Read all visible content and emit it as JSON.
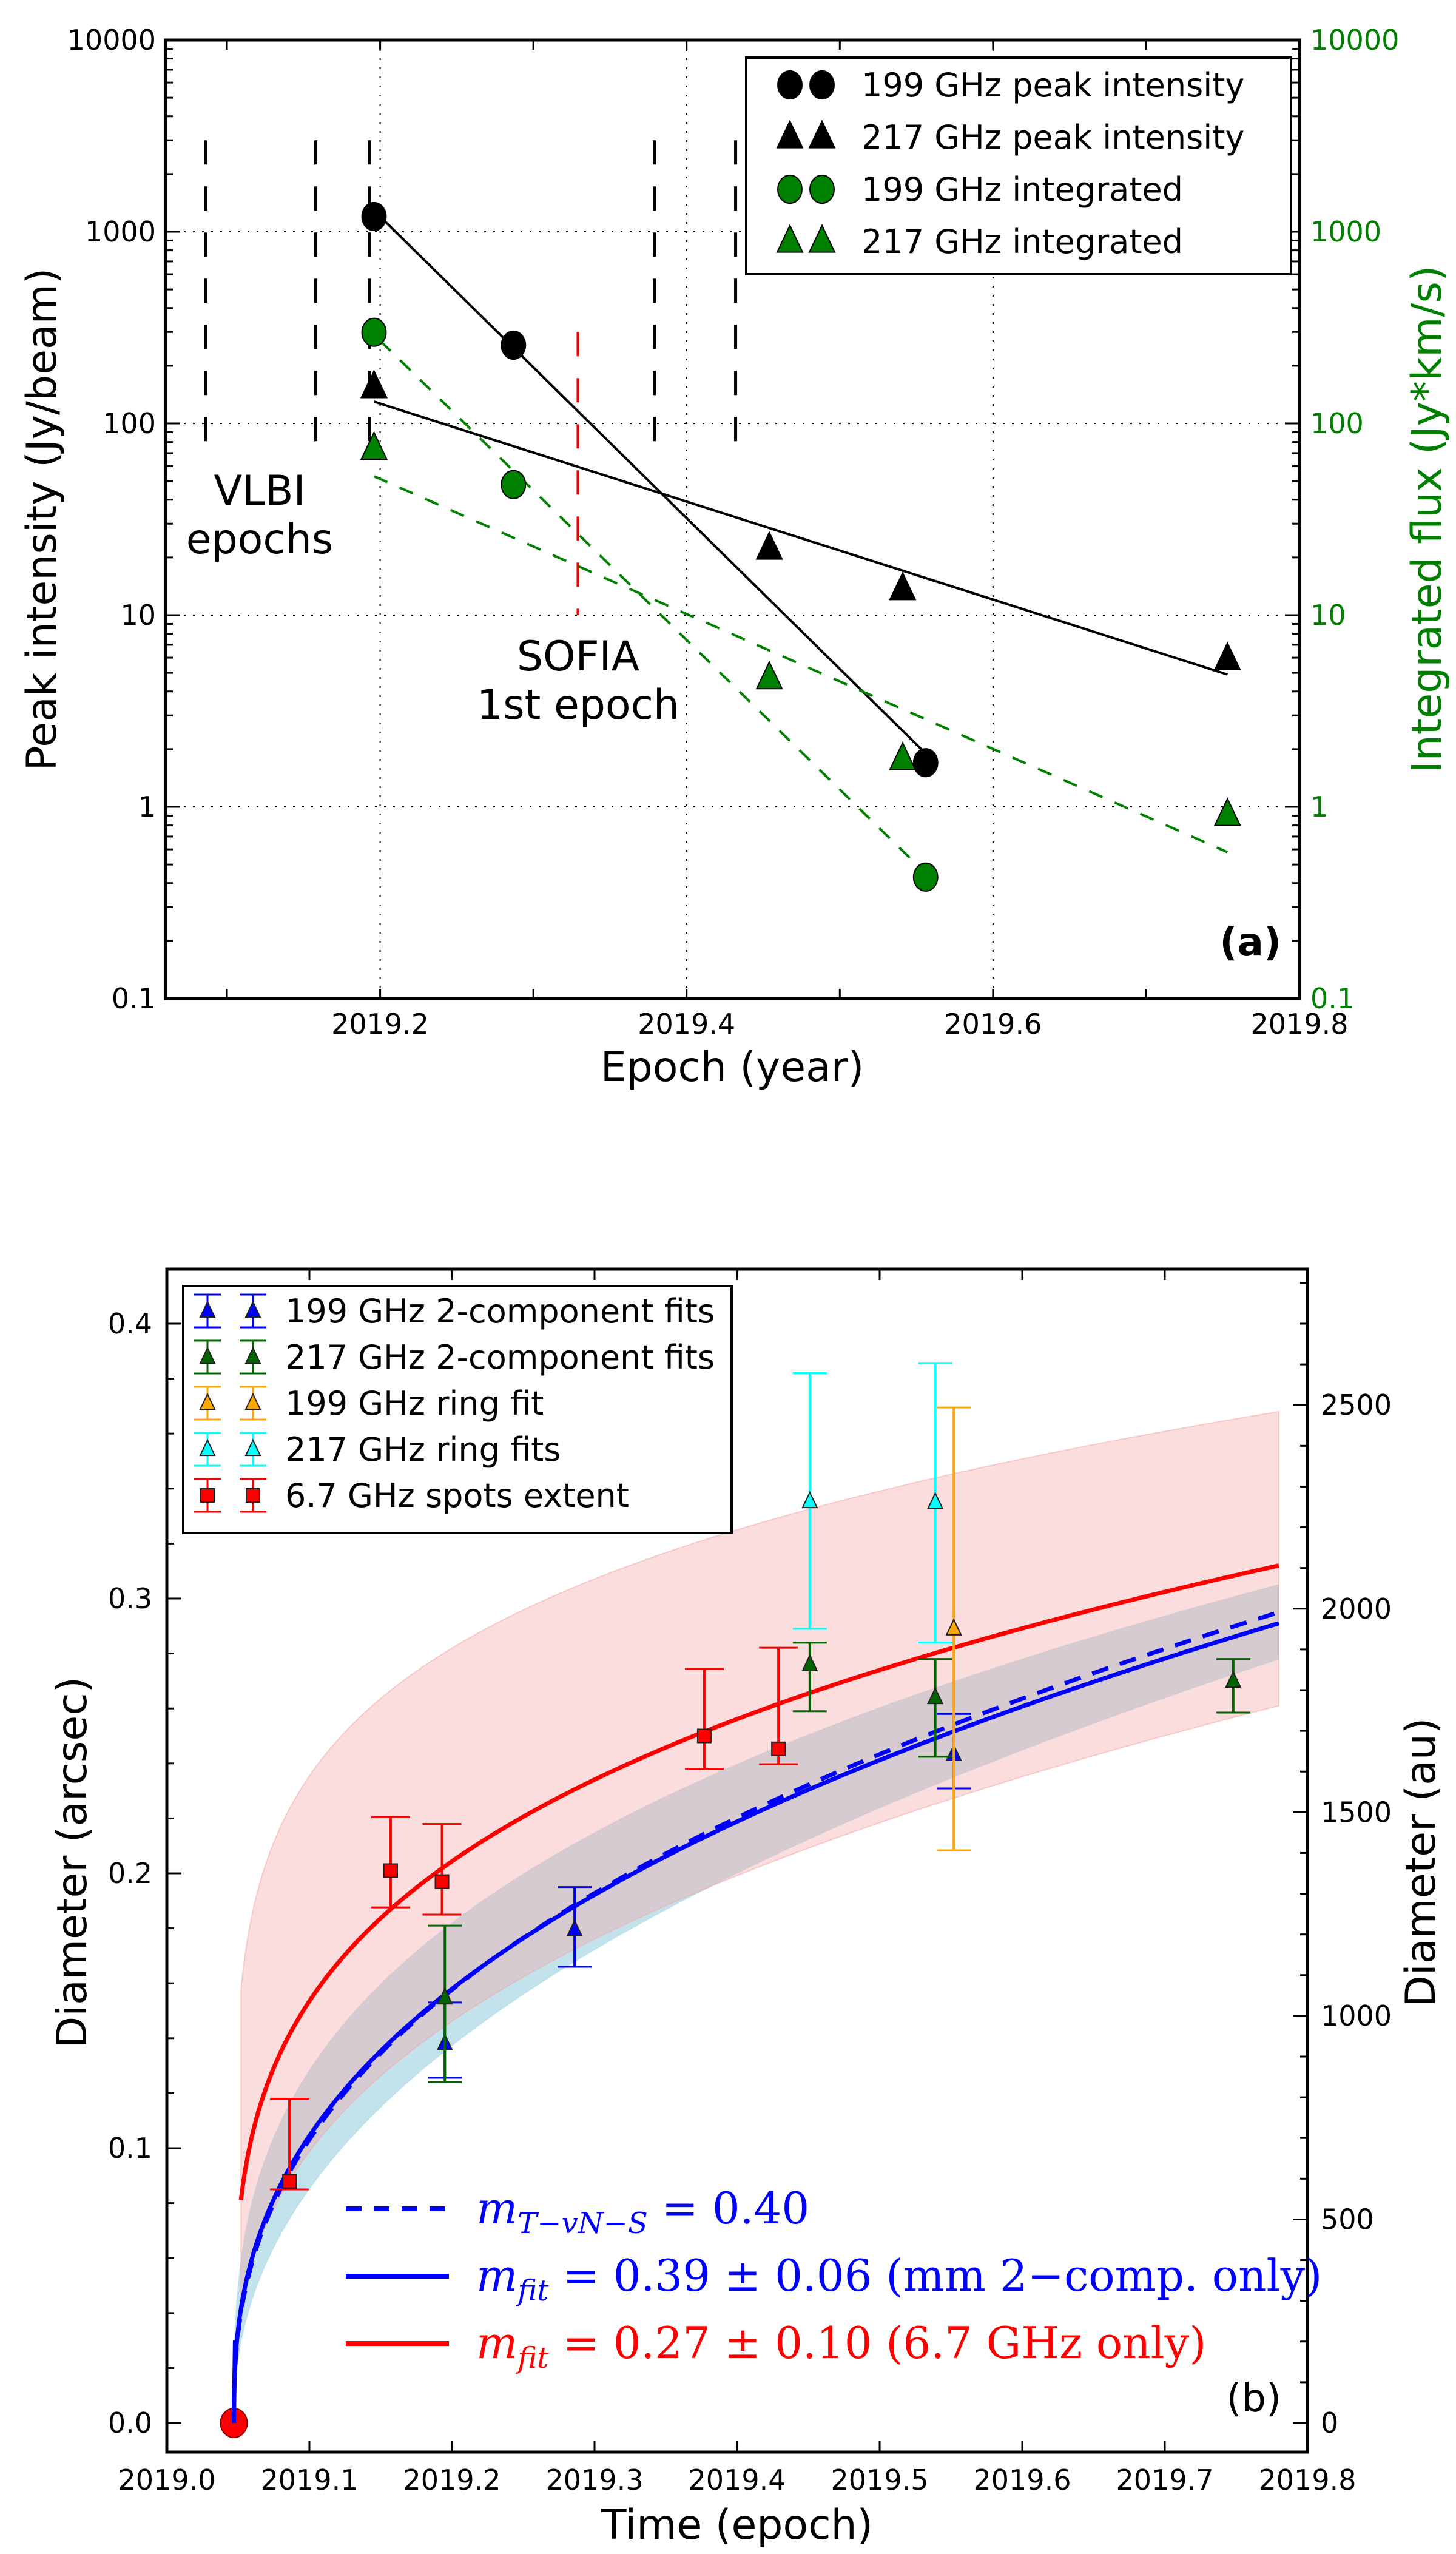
{
  "chart_data": [
    {
      "id": "panel_a",
      "type": "scatter",
      "panel_label": "(a)",
      "xlabel": "Epoch (year)",
      "ylabel": "Peak intensity (Jy/beam)",
      "ylabel_right": "Integrated flux (Jy*km/s)",
      "xscale": "linear",
      "yscale": "log",
      "xlim": [
        2019.06,
        2019.8
      ],
      "ylim": [
        0.1,
        10000
      ],
      "ylim_right": [
        0.1,
        10000
      ],
      "xticks": [
        2019.2,
        2019.4,
        2019.6,
        2019.8
      ],
      "xtick_labels": [
        "2019.2",
        "2019.4",
        "2019.6",
        "2019.8"
      ],
      "yticks": [
        0.1,
        1,
        10,
        100,
        1000,
        10000
      ],
      "ytick_labels": [
        "0.1",
        "1",
        "10",
        "100",
        "1000",
        "10000"
      ],
      "ytick_labels_right": [
        "0.1",
        "1",
        "10",
        "100",
        "1000",
        "10000"
      ],
      "grid": true,
      "legend_position": "top-right",
      "colors": {
        "black": "#000000",
        "green": "#008000",
        "right_axis": "#008000",
        "sofia": "#ff0000"
      },
      "series": [
        {
          "name": "199 GHz peak intensity",
          "marker": "circle",
          "color": "#000000",
          "x": [
            2019.196,
            2019.287,
            2019.556
          ],
          "y": [
            1200,
            256,
            1.7
          ]
        },
        {
          "name": "217 GHz peak intensity",
          "marker": "triangle",
          "color": "#000000",
          "x": [
            2019.196,
            2019.454,
            2019.541,
            2019.753
          ],
          "y": [
            155,
            22.3,
            13.7,
            5.9
          ]
        },
        {
          "name": "199 GHz integrated",
          "marker": "circle",
          "color": "#008000",
          "x": [
            2019.196,
            2019.287,
            2019.556
          ],
          "y": [
            299,
            48,
            0.43
          ]
        },
        {
          "name": "217 GHz integrated",
          "marker": "triangle",
          "color": "#008000",
          "x": [
            2019.196,
            2019.454,
            2019.541,
            2019.753
          ],
          "y": [
            74,
            4.7,
            1.78,
            0.91
          ]
        }
      ],
      "fit_lines": [
        {
          "name": "199 GHz peak fit",
          "style": "solid",
          "color": "#000000",
          "x": [
            2019.2,
            2019.556
          ],
          "y": [
            1200,
            1.9
          ]
        },
        {
          "name": "217 GHz peak fit",
          "style": "solid",
          "color": "#000000",
          "x": [
            2019.196,
            2019.753
          ],
          "y": [
            130,
            4.9
          ]
        },
        {
          "name": "199 GHz integrated fit",
          "style": "dashed",
          "color": "#008000",
          "x": [
            2019.2,
            2019.556
          ],
          "y": [
            270,
            0.45
          ]
        },
        {
          "name": "217 GHz integrated fit",
          "style": "dashed",
          "color": "#008000",
          "x": [
            2019.196,
            2019.753
          ],
          "y": [
            53,
            0.58
          ]
        }
      ],
      "vlbi_epochs": {
        "label_line1": "VLBI",
        "label_line2": "epochs",
        "x": [
          2019.086,
          2019.158,
          2019.193,
          2019.379,
          2019.432
        ],
        "y_range": [
          70,
          3000
        ],
        "color": "#000000"
      },
      "sofia_epoch": {
        "label_line1": "SOFIA",
        "label_line2": "1st epoch",
        "x": 2019.329,
        "y_range": [
          10,
          300
        ],
        "color": "#ff0000"
      }
    },
    {
      "id": "panel_b",
      "type": "scatter",
      "panel_label": "(b)",
      "xlabel": "Time (epoch)",
      "ylabel": "Diameter (arcsec)",
      "ylabel_right": "Diameter (au)",
      "xlim": [
        2019.0,
        2019.8
      ],
      "ylim": [
        -0.01,
        0.42
      ],
      "au_per_arcsec": 6750,
      "xticks": [
        2019.0,
        2019.1,
        2019.2,
        2019.3,
        2019.4,
        2019.5,
        2019.6,
        2019.7,
        2019.8
      ],
      "xtick_labels": [
        "2019.0",
        "2019.1",
        "2019.2",
        "2019.3",
        "2019.4",
        "2019.5",
        "2019.6",
        "2019.7",
        "2019.8"
      ],
      "yticks": [
        0.0,
        0.1,
        0.2,
        0.3,
        0.4
      ],
      "ytick_labels": [
        "0.0",
        "0.1",
        "0.2",
        "0.3",
        "0.4"
      ],
      "yticks_right": [
        0,
        500,
        1000,
        1500,
        2000,
        2500
      ],
      "ytick_labels_right": [
        "0",
        "500",
        "1000",
        "1500",
        "2000",
        "2500"
      ],
      "grid": false,
      "legend_position": "top-left",
      "origin_point": {
        "x": 2019.047,
        "y": 0.0,
        "color": "#ff0000"
      },
      "series": [
        {
          "name": "199 GHz 2-component fits",
          "marker": "triangle",
          "color": "#0000ff",
          "points": [
            {
              "x": 2019.195,
              "y": 0.138,
              "lo": 0.1256,
              "hi": 0.153
            },
            {
              "x": 2019.286,
              "y": 0.1795,
              "lo": 0.166,
              "hi": 0.195
            },
            {
              "x": 2019.552,
              "y": 0.2433,
              "lo": 0.2309,
              "hi": 0.258
            }
          ]
        },
        {
          "name": "217 GHz 2-component fits",
          "marker": "triangle",
          "color": "#006400",
          "points": [
            {
              "x": 2019.195,
              "y": 0.1547,
              "lo": 0.124,
              "hi": 0.181
            },
            {
              "x": 2019.451,
              "y": 0.276,
              "lo": 0.259,
              "hi": 0.2839
            },
            {
              "x": 2019.539,
              "y": 0.264,
              "lo": 0.2424,
              "hi": 0.278
            },
            {
              "x": 2019.748,
              "y": 0.27,
              "lo": 0.2585,
              "hi": 0.278
            }
          ]
        },
        {
          "name": "199 GHz ring fit",
          "marker": "triangle",
          "color": "#ffa500",
          "points": [
            {
              "x": 2019.552,
              "y": 0.289,
              "lo": 0.2084,
              "hi": 0.3695
            }
          ]
        },
        {
          "name": "217 GHz ring fits",
          "marker": "triangle",
          "color": "#00ffff",
          "points": [
            {
              "x": 2019.451,
              "y": 0.3353,
              "lo": 0.289,
              "hi": 0.382
            },
            {
              "x": 2019.539,
              "y": 0.335,
              "lo": 0.284,
              "hi": 0.3857
            }
          ]
        },
        {
          "name": "6.7 GHz spots extent",
          "marker": "square",
          "color": "#ff0000",
          "points": [
            {
              "x": 2019.086,
              "y": 0.0879,
              "lo": 0.085,
              "hi": 0.118
            },
            {
              "x": 2019.157,
              "y": 0.201,
              "lo": 0.1876,
              "hi": 0.2205
            },
            {
              "x": 2019.193,
              "y": 0.197,
              "lo": 0.185,
              "hi": 0.218
            },
            {
              "x": 2019.377,
              "y": 0.25,
              "lo": 0.238,
              "hi": 0.2744
            },
            {
              "x": 2019.429,
              "y": 0.2453,
              "lo": 0.2397,
              "hi": 0.2821
            }
          ]
        }
      ],
      "model_curves": [
        {
          "name": "m_T-vN-S = 0.40",
          "style": "dashed",
          "color": "#0000ff",
          "t0": 2019.047,
          "t_end": 2019.78,
          "m": 0.4,
          "end_value": 0.295
        },
        {
          "name": "m_fit = 0.39 ± 0.06 (mm 2-comp. only)",
          "style": "solid",
          "color": "#0000ff",
          "t0": 2019.047,
          "t_end": 2019.78,
          "m": 0.39,
          "end_value": 0.291,
          "band": {
            "color": "#add8e6",
            "m_range": [
              0.33,
              0.45
            ],
            "end_range": [
              0.278,
              0.305
            ]
          }
        },
        {
          "name": "m_fit = 0.27 ± 0.10 (6.7 GHz only)",
          "style": "solid",
          "color": "#ff0000",
          "t0": 2019.047,
          "t_start": 2019.052,
          "t_end": 2019.78,
          "m": 0.27,
          "end_value": 0.312,
          "band": {
            "color": "#f4a6a6",
            "m_range": [
              0.17,
              0.37
            ],
            "end_range": [
              0.261,
              0.368
            ]
          }
        }
      ],
      "fit_legend": [
        {
          "style": "dashed",
          "color": "#0000ff",
          "symbol": "m",
          "subscript": "T−vN−S",
          "text": " = 0.40"
        },
        {
          "style": "solid",
          "color": "#0000ff",
          "symbol": "m",
          "subscript": "fit",
          "text": " = 0.39 ± 0.06 (mm 2−comp. only)"
        },
        {
          "style": "solid",
          "color": "#ff0000",
          "symbol": "m",
          "subscript": "fit",
          "text": " = 0.27 ± 0.10 (6.7 GHz only)"
        }
      ]
    }
  ]
}
